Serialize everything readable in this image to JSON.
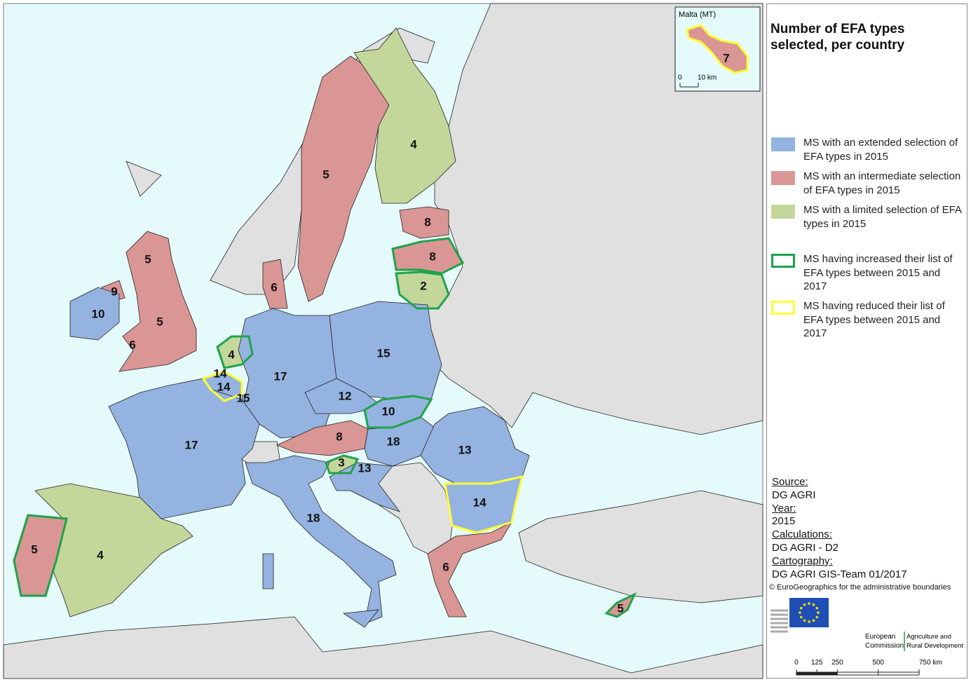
{
  "map": {
    "title": "Number of EFA types selected, per country",
    "regions": [
      {
        "label": 5,
        "fill": "#d99694",
        "outline": null
      },
      {
        "label": 4,
        "fill": "#c4d79b",
        "outline": null
      },
      {
        "label": 8,
        "fill": "#d99694",
        "outline": null
      },
      {
        "label": 8,
        "fill": "#d99694",
        "outline": "#1ea34a"
      },
      {
        "label": 2,
        "fill": "#c4d79b",
        "outline": "#1ea34a"
      },
      {
        "label": 6,
        "fill": "#d99694",
        "outline": null
      },
      {
        "label": 5,
        "fill": "#d99694",
        "outline": null
      },
      {
        "label": 5,
        "fill": "#d99694",
        "outline": null
      },
      {
        "label": 6,
        "fill": "#d99694",
        "outline": null
      },
      {
        "label": 9,
        "fill": "#d99694",
        "outline": null
      },
      {
        "label": 10,
        "fill": "#95b3e0",
        "outline": null
      },
      {
        "label": 4,
        "fill": "#c4d79b",
        "outline": "#1ea34a"
      },
      {
        "label": 14,
        "fill": "#95b3e0",
        "outline": null
      },
      {
        "label": 14,
        "fill": "#95b3e0",
        "outline": "#ffff33"
      },
      {
        "label": 15,
        "fill": "#95b3e0",
        "outline": null
      },
      {
        "label": 17,
        "fill": "#95b3e0",
        "outline": null
      },
      {
        "label": 15,
        "fill": "#95b3e0",
        "outline": null
      },
      {
        "label": 12,
        "fill": "#95b3e0",
        "outline": null
      },
      {
        "label": 10,
        "fill": "#95b3e0",
        "outline": "#1ea34a"
      },
      {
        "label": 8,
        "fill": "#d99694",
        "outline": null
      },
      {
        "label": 18,
        "fill": "#95b3e0",
        "outline": null
      },
      {
        "label": 13,
        "fill": "#95b3e0",
        "outline": null
      },
      {
        "label": 3,
        "fill": "#c4d79b",
        "outline": "#1ea34a"
      },
      {
        "label": 13,
        "fill": "#95b3e0",
        "outline": null
      },
      {
        "label": 14,
        "fill": "#95b3e0",
        "outline": "#ffff33"
      },
      {
        "label": 17,
        "fill": "#95b3e0",
        "outline": null
      },
      {
        "label": 18,
        "fill": "#95b3e0",
        "outline": null
      },
      {
        "label": 4,
        "fill": "#c4d79b",
        "outline": null
      },
      {
        "label": 5,
        "fill": "#d99694",
        "outline": "#1ea34a"
      },
      {
        "label": 6,
        "fill": "#d99694",
        "outline": null
      },
      {
        "label": 5,
        "fill": "#d99694",
        "outline": "#1ea34a"
      }
    ],
    "inset": {
      "title": "Malta (MT)",
      "label": 7,
      "fill": "#d99694",
      "outline": "#ffff33",
      "scale": [
        0,
        {
          "value": 10,
          "label": "10 km"
        }
      ]
    },
    "legend": [
      {
        "text": "MS with an extended selection of EFA types in 2015",
        "color": "#95b3e0",
        "kind": "fill"
      },
      {
        "text": "MS with an intermediate selection of EFA types in 2015",
        "color": "#d99694",
        "kind": "fill"
      },
      {
        "text": "MS with a limited selection of EFA types in 2015",
        "color": "#c4d79b",
        "kind": "fill"
      },
      {
        "text": "MS having increased their list of EFA types between 2015 and 2017",
        "color": "#1ea34a",
        "kind": "outline"
      },
      {
        "text": "MS having reduced their list of EFA types between 2015 and 2017",
        "color": "#ffff33",
        "kind": "outline"
      }
    ],
    "credits": [
      {
        "heading": "Source:",
        "text": "DG AGRI"
      },
      {
        "heading": "Year:",
        "text": 2015
      },
      {
        "heading": "Calculations:",
        "text": "DG AGRI - D2"
      },
      {
        "heading": "Cartography:",
        "text": "DG AGRI GIS-Team 01/2017"
      }
    ],
    "copyright": "© EuroGeographics for the administrative boundaries",
    "logo": {
      "institution": "European Commission",
      "dg": "Agriculture and Rural Development"
    },
    "scale": [
      0,
      125,
      250,
      500,
      {
        "value": 750,
        "label": "750 km"
      }
    ]
  }
}
